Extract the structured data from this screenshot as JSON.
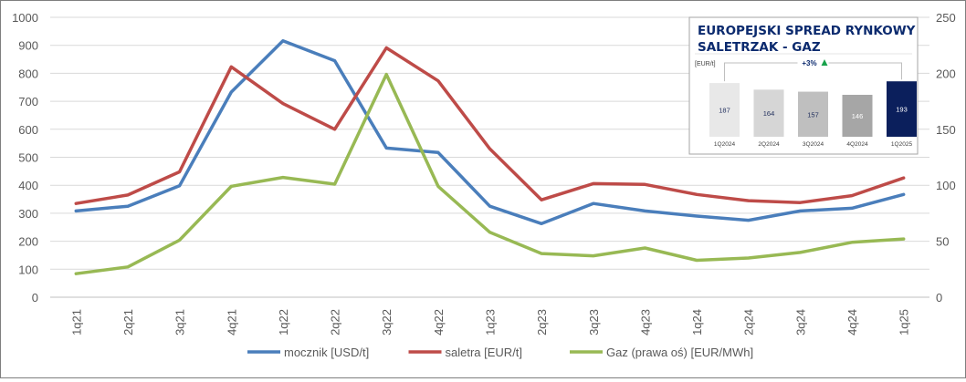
{
  "chart_data": [
    {
      "type": "line",
      "categories": [
        "1q21",
        "2q21",
        "3q21",
        "4q21",
        "1q22",
        "2q22",
        "3q22",
        "4q22",
        "1q23",
        "2q23",
        "3q23",
        "4q23",
        "1q24",
        "2q24",
        "3q24",
        "4q24",
        "1q25"
      ],
      "series": [
        {
          "name": "mocznik [USD/t]",
          "axis": "left",
          "color": "#4a7ebb",
          "values": [
            308,
            325,
            398,
            733,
            916,
            845,
            533,
            517,
            325,
            263,
            335,
            308,
            290,
            275,
            308,
            318,
            367
          ]
        },
        {
          "name": "saletra [EUR/t]",
          "axis": "left",
          "color": "#be4b48",
          "values": [
            335,
            365,
            448,
            823,
            692,
            600,
            891,
            773,
            530,
            348,
            406,
            403,
            367,
            345,
            338,
            363,
            426
          ]
        },
        {
          "name": "Gaz (prawa oś) [EUR/MWh]",
          "axis": "right",
          "color": "#98b954",
          "values": [
            21,
            27,
            51,
            99,
            107,
            101,
            199,
            99,
            58,
            39,
            37,
            44,
            33,
            35,
            40,
            49,
            52
          ]
        }
      ],
      "yleft": {
        "ylim": [
          0,
          1000
        ],
        "ticks": [
          "0",
          "100",
          "200",
          "300",
          "400",
          "500",
          "600",
          "700",
          "800",
          "900",
          "1000"
        ]
      },
      "yright": {
        "ylim": [
          0,
          250
        ],
        "ticks": [
          "0",
          "50",
          "100",
          "150",
          "200",
          "250"
        ]
      },
      "grid": true,
      "legend": "bottom"
    },
    {
      "type": "bar",
      "title": "EUROPEJSKI SPREAD RYNKOWY SALETRZAK - GAZ",
      "title_lines": [
        "EUROPEJSKI SPREAD RYNKOWY",
        "SALETRZAK - GAZ"
      ],
      "ylabel": "[EUR/t]",
      "annotation": "+3%",
      "categories": [
        "1Q2024",
        "2Q2024",
        "3Q2024",
        "4Q2024",
        "1Q2025"
      ],
      "values": [
        187,
        164,
        157,
        146,
        193
      ],
      "labels": [
        "187",
        "164",
        "157",
        "146",
        "193"
      ],
      "colors": [
        "#e8e8e8",
        "#d6d6d6",
        "#bfbfbf",
        "#a6a6a6",
        "#0b1f5c"
      ],
      "label_colors": [
        "#1f2d5c",
        "#1f2d5c",
        "#1f2d5c",
        "#ffffff",
        "#ffffff"
      ],
      "title_color": "#0b2a6e",
      "up_arrow_color": "#18a24b"
    }
  ]
}
